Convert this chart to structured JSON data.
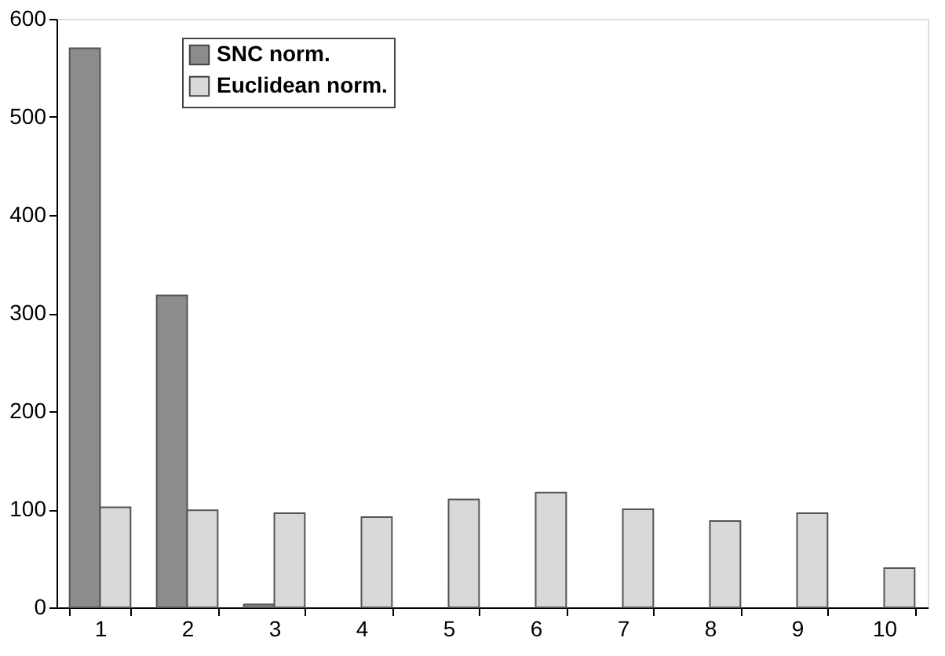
{
  "chart_data": {
    "type": "bar",
    "categories": [
      "1",
      "2",
      "3",
      "4",
      "5",
      "6",
      "7",
      "8",
      "9",
      "10"
    ],
    "series": [
      {
        "name": "SNC norm.",
        "color": "#8c8c8c",
        "values": [
          570,
          318,
          3,
          null,
          null,
          null,
          null,
          null,
          null,
          null
        ]
      },
      {
        "name": "Euclidean norm.",
        "color": "#d9d9d9",
        "values": [
          102,
          99,
          96,
          92,
          110,
          117,
          100,
          88,
          96,
          40
        ]
      }
    ],
    "ylim": [
      0,
      600
    ],
    "yticks": [
      0,
      100,
      200,
      300,
      400,
      500,
      600
    ],
    "grid": false,
    "legend": "top left"
  }
}
